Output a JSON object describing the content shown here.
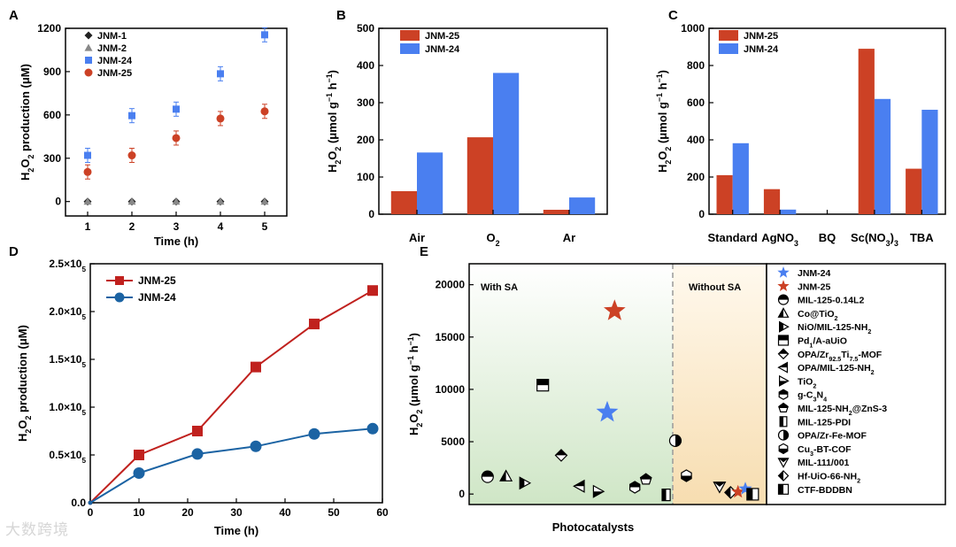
{
  "watermark": "大数跨境",
  "chart_data": [
    {
      "panel": "A",
      "type": "scatter",
      "xlabel": "Time (h)",
      "ylabel_parts": [
        "H",
        "2",
        "O",
        "2",
        " production (μM)"
      ],
      "x": [
        1,
        2,
        3,
        4,
        5
      ],
      "xlim": [
        0.5,
        5.5
      ],
      "ylim": [
        -100,
        1200
      ],
      "yticks": [
        0,
        300,
        600,
        900,
        1200
      ],
      "series": [
        {
          "name": "JNM-1",
          "marker": "diamond",
          "color": "#222222",
          "values": [
            0,
            0,
            0,
            0,
            0
          ]
        },
        {
          "name": "JNM-2",
          "marker": "triangle",
          "color": "#888888",
          "values": [
            0,
            0,
            0,
            0,
            0
          ]
        },
        {
          "name": "JNM-24",
          "marker": "square",
          "color": "#4a7ff0",
          "values": [
            320,
            595,
            640,
            885,
            1155
          ]
        },
        {
          "name": "JNM-25",
          "marker": "circle",
          "color": "#cc4125",
          "values": [
            205,
            320,
            440,
            575,
            625
          ]
        }
      ],
      "legend": "top-left"
    },
    {
      "panel": "B",
      "type": "bar",
      "ylabel_parts": [
        "H",
        "2",
        "O",
        "2",
        " (μmol g",
        "−1",
        " h",
        "−1",
        ")"
      ],
      "categories": [
        [
          "Air"
        ],
        [
          "O",
          "2"
        ],
        [
          "Ar"
        ]
      ],
      "ylim": [
        0,
        500
      ],
      "yticks": [
        0,
        100,
        200,
        300,
        400,
        500
      ],
      "series": [
        {
          "name": "JNM-25",
          "color": "#cc4125",
          "values": [
            62,
            207,
            12
          ]
        },
        {
          "name": "JNM-24",
          "color": "#4a7ff0",
          "values": [
            166,
            380,
            45
          ]
        }
      ],
      "legend": "top-left"
    },
    {
      "panel": "C",
      "type": "bar",
      "ylabel_parts": [
        "H",
        "2",
        "O",
        "2",
        " (μmol g",
        "−1",
        " h",
        "−1",
        ")"
      ],
      "categories": [
        [
          "Standard"
        ],
        [
          "AgNO",
          "3"
        ],
        [
          "BQ"
        ],
        [
          "Sc(NO",
          "3",
          ")",
          "3"
        ],
        [
          "TBA"
        ]
      ],
      "ylim": [
        0,
        1000
      ],
      "yticks": [
        0,
        200,
        400,
        600,
        800,
        1000
      ],
      "series": [
        {
          "name": "JNM-25",
          "color": "#cc4125",
          "values": [
            210,
            135,
            0,
            890,
            245
          ]
        },
        {
          "name": "JNM-24",
          "color": "#4a7ff0",
          "values": [
            382,
            25,
            0,
            620,
            562
          ]
        }
      ],
      "legend": "top-left"
    },
    {
      "panel": "D",
      "type": "line",
      "xlabel": "Time (h)",
      "ylabel_parts": [
        "H",
        "2",
        "O",
        "2",
        " production (μM)"
      ],
      "xlim": [
        0,
        60
      ],
      "xticks": [
        0,
        10,
        20,
        30,
        40,
        50,
        60
      ],
      "ylim": [
        0,
        250000
      ],
      "ytick_labels": [
        [
          "0.0"
        ],
        [
          "0.5×10",
          "5"
        ],
        [
          "1.0×10",
          "5"
        ],
        [
          "1.5×10",
          "5"
        ],
        [
          "2.0×10",
          "5"
        ],
        [
          "2.5×10",
          "5"
        ]
      ],
      "yticks": [
        0,
        50000,
        100000,
        150000,
        200000,
        250000
      ],
      "series": [
        {
          "name": "JNM-25",
          "color": "#c0211e",
          "marker": "square",
          "x": [
            0,
            10,
            22,
            34,
            46,
            58
          ],
          "values": [
            0,
            50000,
            75000,
            142000,
            187000,
            222000
          ]
        },
        {
          "name": "JNM-24",
          "color": "#1b63a3",
          "marker": "circle",
          "x": [
            0,
            10,
            22,
            34,
            46,
            58
          ],
          "values": [
            0,
            31000,
            51000,
            59000,
            72000,
            77500
          ]
        }
      ],
      "legend": "top-left"
    },
    {
      "panel": "E",
      "type": "scatter",
      "xlabel": "Photocatalysts",
      "ylabel_parts": [
        "H",
        "2",
        "O",
        "2",
        " (μmol g",
        "−1",
        " h",
        "−1",
        ")"
      ],
      "ylim": [
        -1000,
        22000
      ],
      "yticks": [
        0,
        5000,
        10000,
        15000,
        20000
      ],
      "region_labels": [
        "With SA",
        "Without SA"
      ],
      "legend": [
        {
          "label": [
            "JNM-24"
          ],
          "symbol": "star-blue"
        },
        {
          "label": [
            "JNM-25"
          ],
          "symbol": "star-red"
        },
        {
          "label": [
            "MIL-125-0.14L2"
          ],
          "symbol": "circle-top"
        },
        {
          "label": [
            "Co@TiO",
            "2"
          ],
          "symbol": "triangle-up"
        },
        {
          "label": [
            "NiO/MIL-125-NH",
            "2"
          ],
          "symbol": "triangle-right-half"
        },
        {
          "label": [
            "Pd",
            "1",
            "/A-aUiO"
          ],
          "symbol": "square-top"
        },
        {
          "label": [
            "OPA/Zr",
            "92.5",
            "Ti",
            "7.5",
            "-MOF"
          ],
          "symbol": "diamond-top"
        },
        {
          "label": [
            "OPA/MIL-125-NH",
            "2"
          ],
          "symbol": "triangle-left"
        },
        {
          "label": [
            "TiO",
            "2"
          ],
          "symbol": "triangle-right"
        },
        {
          "label": [
            "g-C",
            "3",
            "N",
            "4"
          ],
          "symbol": "hexagon-top"
        },
        {
          "label": [
            "MIL-125-NH",
            "2",
            "@ZnS-3"
          ],
          "symbol": "pentagon-top"
        },
        {
          "label": [
            "MIL-125-PDI"
          ],
          "symbol": "rect-left"
        },
        {
          "label": [
            "OPA/Zr-Fe-MOF"
          ],
          "symbol": "circle-right"
        },
        {
          "label": [
            "Cu",
            "3",
            "-BT-COF"
          ],
          "symbol": "hexagon-bottom"
        },
        {
          "label": [
            "MIL-111/001"
          ],
          "symbol": "triangle-down"
        },
        {
          "label": [
            "Hf-UiO-66-NH",
            "2"
          ],
          "symbol": "diamond-left"
        },
        {
          "label": [
            "CTF-BDDBN"
          ],
          "symbol": "square-left"
        }
      ],
      "points": [
        {
          "symbol": "circle-top",
          "x": 1,
          "y": 1650
        },
        {
          "symbol": "triangle-up",
          "x": 2,
          "y": 1700
        },
        {
          "symbol": "triangle-right-half",
          "x": 3,
          "y": 1050
        },
        {
          "symbol": "square-top",
          "x": 4,
          "y": 10400
        },
        {
          "symbol": "diamond-top",
          "x": 5,
          "y": 3700
        },
        {
          "symbol": "triangle-left",
          "x": 6,
          "y": 750
        },
        {
          "symbol": "triangle-right",
          "x": 7,
          "y": 250
        },
        {
          "symbol": "star-red",
          "x": 7.9,
          "y": 17500
        },
        {
          "symbol": "star-blue",
          "x": 7.5,
          "y": 7800
        },
        {
          "symbol": "hexagon-top",
          "x": 9,
          "y": 650
        },
        {
          "symbol": "pentagon-top",
          "x": 9.6,
          "y": 1400
        },
        {
          "symbol": "rect-left",
          "x": 10.7,
          "y": -80
        },
        {
          "symbol": "circle-right",
          "x": 11.2,
          "y": 5100
        },
        {
          "symbol": "hexagon-bottom",
          "x": 11.8,
          "y": 1750
        },
        {
          "symbol": "triangle-down",
          "x": 13.6,
          "y": 700
        },
        {
          "symbol": "diamond-left",
          "x": 14.2,
          "y": 150
        },
        {
          "symbol": "star-red",
          "x": 14.6,
          "y": 200
        },
        {
          "symbol": "star-blue",
          "x": 15,
          "y": 500
        },
        {
          "symbol": "square-left",
          "x": 15.4,
          "y": -20
        }
      ]
    }
  ]
}
